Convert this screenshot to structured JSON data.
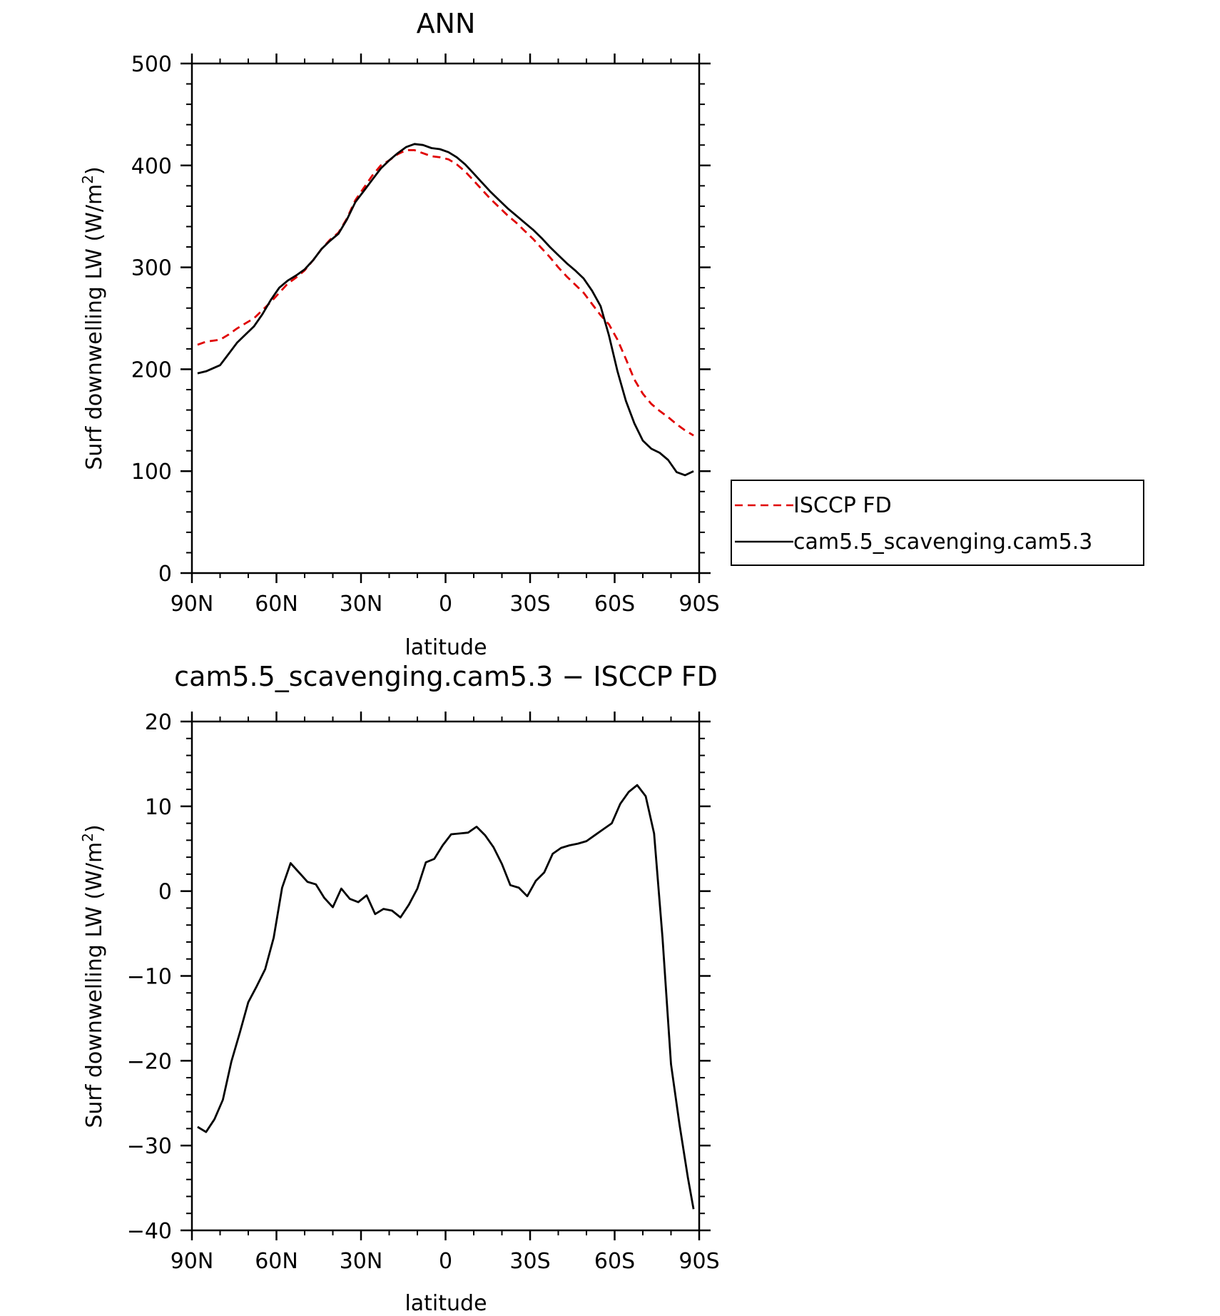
{
  "chart_data": [
    {
      "type": "line",
      "title": "ANN",
      "xlabel": "latitude",
      "ylabel": "Surf downwelling LW (W/m",
      "ylabel_sup": "2",
      "ylabel_close": ")",
      "xlim": [
        90,
        -90
      ],
      "ylim": [
        0,
        500
      ],
      "x_tick_values": [
        90,
        60,
        30,
        0,
        -30,
        -60,
        -90
      ],
      "x_tick_labels": [
        "90N",
        "60N",
        "30N",
        "0",
        "30S",
        "60S",
        "90S"
      ],
      "y_tick_values": [
        0,
        100,
        200,
        300,
        400,
        500
      ],
      "y_tick_labels": [
        "0",
        "100",
        "200",
        "300",
        "400",
        "500"
      ],
      "legend_position": "right",
      "series": [
        {
          "name": "ISCCP FD",
          "color": "#e00000",
          "style": "dashed",
          "x": [
            88,
            85,
            80,
            77,
            74,
            71,
            68,
            65,
            62,
            59,
            56,
            53,
            50,
            47,
            44,
            41,
            38,
            35,
            32,
            29,
            26,
            23,
            20,
            17,
            14,
            11,
            8,
            5,
            2,
            -1,
            -4,
            -7,
            -10,
            -13,
            -16,
            -19,
            -22,
            -25,
            -28,
            -31,
            -34,
            -37,
            -40,
            -43,
            -46,
            -49,
            -52,
            -55,
            -58,
            -61,
            -64,
            -67,
            -70,
            -73,
            -76,
            -79,
            -82,
            -85,
            -88
          ],
          "y": [
            224,
            227,
            229,
            234,
            240,
            245,
            250,
            258,
            266,
            275,
            284,
            290,
            297,
            307,
            318,
            327,
            334,
            348,
            366,
            378,
            390,
            400,
            405,
            411,
            415,
            415,
            412,
            409,
            408,
            406,
            401,
            394,
            385,
            376,
            367,
            359,
            351,
            344,
            336,
            328,
            319,
            310,
            300,
            291,
            283,
            275,
            264,
            253,
            244,
            229,
            210,
            190,
            176,
            166,
            159,
            153,
            146,
            140,
            135
          ]
        },
        {
          "name": "cam5.5_scavenging.cam5.3",
          "color": "#000000",
          "style": "solid",
          "x": [
            88,
            85,
            80,
            77,
            74,
            71,
            68,
            65,
            62,
            59,
            56,
            53,
            50,
            47,
            44,
            41,
            38,
            35,
            32,
            29,
            26,
            23,
            20,
            17,
            14,
            11,
            8,
            5,
            2,
            -1,
            -4,
            -7,
            -10,
            -13,
            -16,
            -19,
            -22,
            -25,
            -28,
            -31,
            -34,
            -37,
            -40,
            -43,
            -46,
            -49,
            -52,
            -55,
            -58,
            -61,
            -64,
            -67,
            -70,
            -73,
            -76,
            -79,
            -82,
            -85,
            -88
          ],
          "y": [
            196,
            198,
            204,
            215,
            226,
            234,
            242,
            254,
            268,
            280,
            287,
            292,
            298,
            307,
            318,
            326,
            333,
            347,
            364,
            375,
            386,
            397,
            405,
            412,
            418,
            421,
            420,
            417,
            416,
            413,
            408,
            401,
            392,
            383,
            374,
            366,
            358,
            351,
            344,
            337,
            329,
            320,
            312,
            304,
            297,
            289,
            277,
            262,
            233,
            198,
            169,
            147,
            130,
            122,
            118,
            111,
            99,
            96,
            100
          ]
        }
      ]
    },
    {
      "type": "line",
      "title": "cam5.5_scavenging.cam5.3 − ISCCP FD",
      "xlabel": "latitude",
      "ylabel": "Surf downwelling LW (W/m",
      "ylabel_sup": "2",
      "ylabel_close": ")",
      "xlim": [
        90,
        -90
      ],
      "ylim": [
        -40,
        20
      ],
      "x_tick_values": [
        90,
        60,
        30,
        0,
        -30,
        -60,
        -90
      ],
      "x_tick_labels": [
        "90N",
        "60N",
        "30N",
        "0",
        "30S",
        "60S",
        "90S"
      ],
      "y_tick_values": [
        -40,
        -30,
        -20,
        -10,
        0,
        10,
        20
      ],
      "y_tick_labels": [
        "−40",
        "−30",
        "−20",
        "−10",
        "0",
        "10",
        "20"
      ],
      "series": [
        {
          "name": "",
          "color": "#000000",
          "style": "solid",
          "x": [
            88,
            85,
            82,
            79,
            76,
            73,
            70,
            67,
            64,
            61,
            58,
            55,
            52,
            49,
            46,
            43,
            40,
            37,
            34,
            31,
            28,
            25,
            22,
            19,
            16,
            13,
            10,
            7,
            4,
            1,
            -2,
            -5,
            -8,
            -11,
            -14,
            -17,
            -20,
            -23,
            -26,
            -29,
            -32,
            -35,
            -38,
            -41,
            -44,
            -47,
            -50,
            -53,
            -56,
            -59,
            -62,
            -65,
            -68,
            -71,
            -74,
            -77,
            -80,
            -83,
            -86,
            -88
          ],
          "y": [
            -27.8,
            -28.4,
            -26.9,
            -24.6,
            -20.1,
            -16.7,
            -13.1,
            -11.2,
            -9.2,
            -5.5,
            0.4,
            3.3,
            2.2,
            1.1,
            0.8,
            -0.8,
            -1.9,
            0.3,
            -0.9,
            -1.3,
            -0.5,
            -2.7,
            -2.1,
            -2.3,
            -3.1,
            -1.6,
            0.3,
            3.4,
            3.8,
            5.4,
            6.7,
            6.8,
            6.9,
            7.6,
            6.6,
            5.2,
            3.2,
            0.7,
            0.4,
            -0.6,
            1.2,
            2.2,
            4.4,
            5.1,
            5.4,
            5.6,
            5.9,
            6.6,
            7.3,
            8.0,
            10.3,
            11.7,
            12.5,
            11.2,
            6.8,
            -5.5,
            -20.4,
            -27.5,
            -33.8,
            -37.5
          ]
        }
      ]
    }
  ]
}
